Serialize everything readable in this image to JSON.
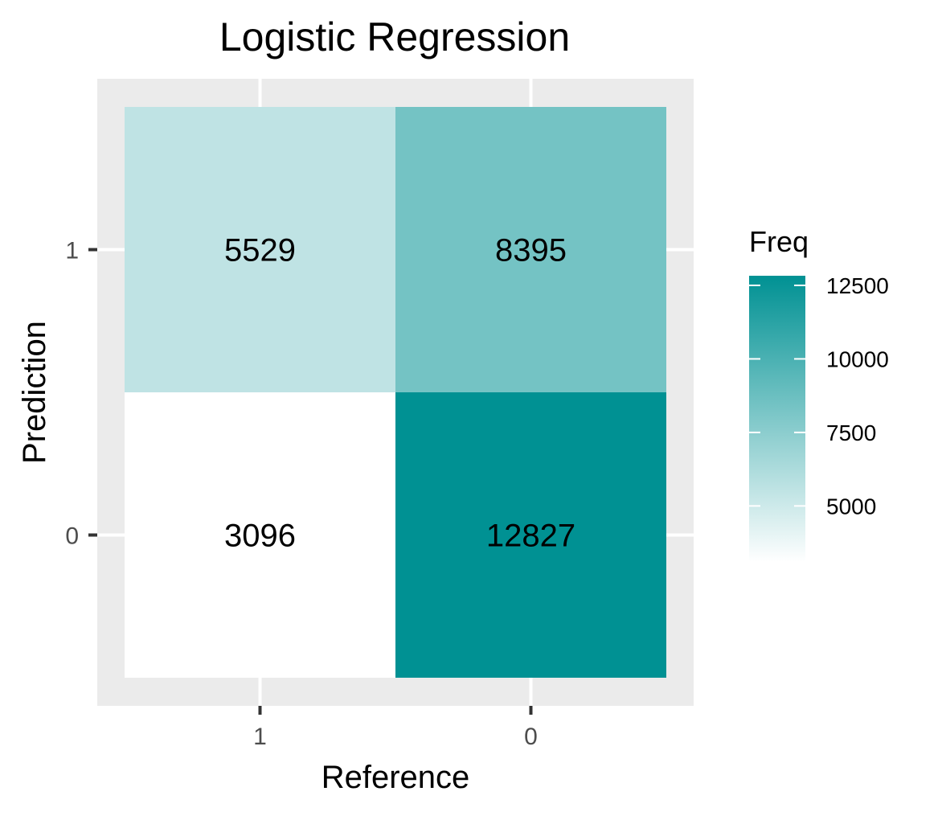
{
  "chart_data": {
    "type": "heatmap",
    "title": "Logistic Regression",
    "xlabel": "Reference",
    "ylabel": "Prediction",
    "x_categories": [
      "1",
      "0"
    ],
    "y_categories": [
      "0",
      "1"
    ],
    "cells": [
      {
        "x": "1",
        "y": "1",
        "value": 5529,
        "label": "5529"
      },
      {
        "x": "0",
        "y": "1",
        "value": 8395,
        "label": "8395"
      },
      {
        "x": "1",
        "y": "0",
        "value": 3096,
        "label": "3096"
      },
      {
        "x": "0",
        "y": "0",
        "value": 12827,
        "label": "12827"
      }
    ],
    "legend": {
      "title": "Freq",
      "breaks": [
        5000,
        7500,
        10000,
        12500
      ],
      "break_labels": [
        "5000",
        "7500",
        "10000",
        "12500"
      ],
      "range": [
        3096,
        12827
      ],
      "low_color": "#ffffff",
      "high_color": "#009193",
      "placement": "right"
    },
    "panel_background": "#ebebeb",
    "grid": true
  }
}
